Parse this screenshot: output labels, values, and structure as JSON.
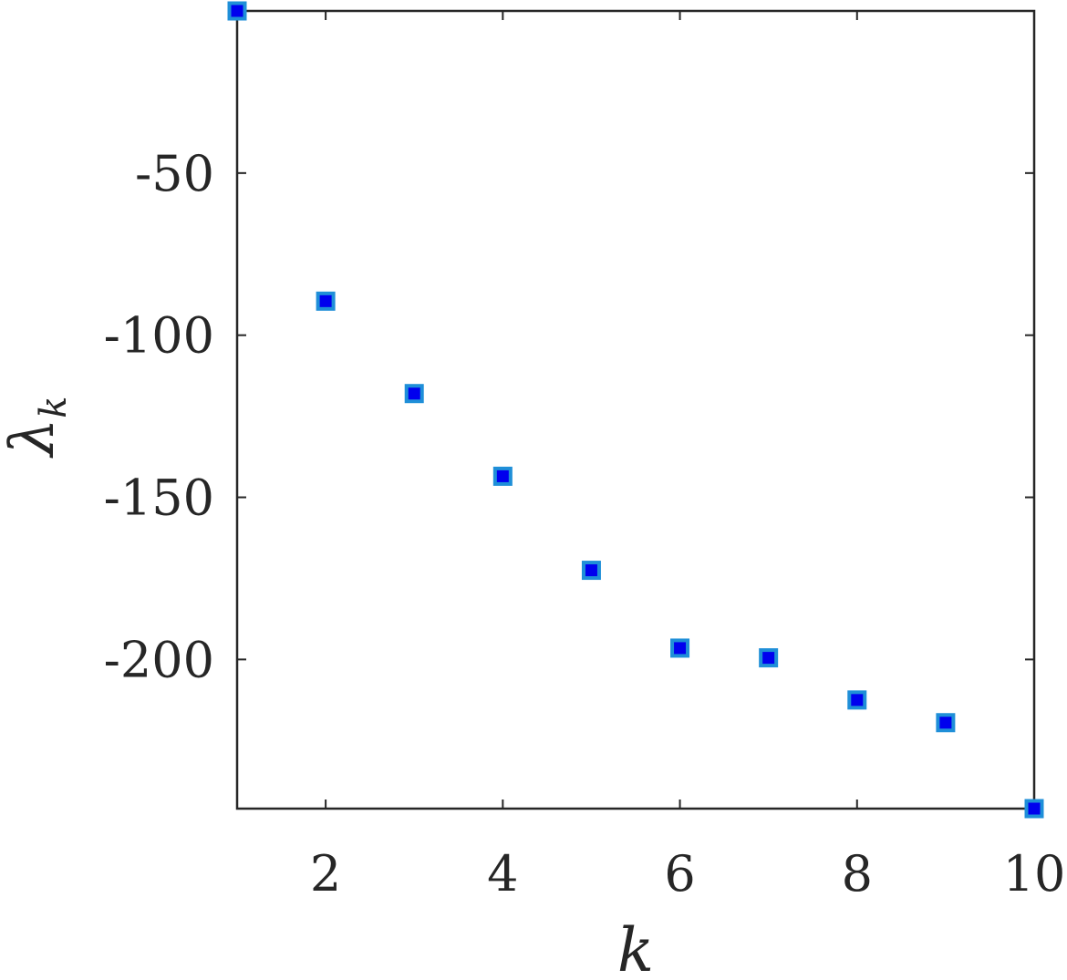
{
  "chart_data": {
    "type": "scatter",
    "title": "",
    "xlabel": "k",
    "ylabel": "λ",
    "ylabel_subscript": "k",
    "xlim": [
      1,
      10
    ],
    "ylim": [
      -246,
      0
    ],
    "x_ticks": [
      2,
      4,
      6,
      8,
      10
    ],
    "x_tick_labels": [
      "2",
      "4",
      "6",
      "8",
      "10"
    ],
    "y_ticks": [
      -50,
      -100,
      -150,
      -200
    ],
    "y_tick_labels": [
      "-50",
      "-100",
      "-150",
      "-200"
    ],
    "grid": false,
    "legend": "none",
    "marker": "square",
    "colors": {
      "marker_fill": "#0000ee",
      "marker_edge": "#1f8fd8",
      "axis": "#262626"
    },
    "series": [
      {
        "x": [
          1,
          2,
          3,
          4,
          5,
          6,
          7,
          8,
          9,
          10
        ],
        "y": [
          0,
          -89.5,
          -118,
          -143.5,
          -172.5,
          -196.5,
          -199.5,
          -212.5,
          -219.5,
          -246
        ]
      }
    ]
  }
}
